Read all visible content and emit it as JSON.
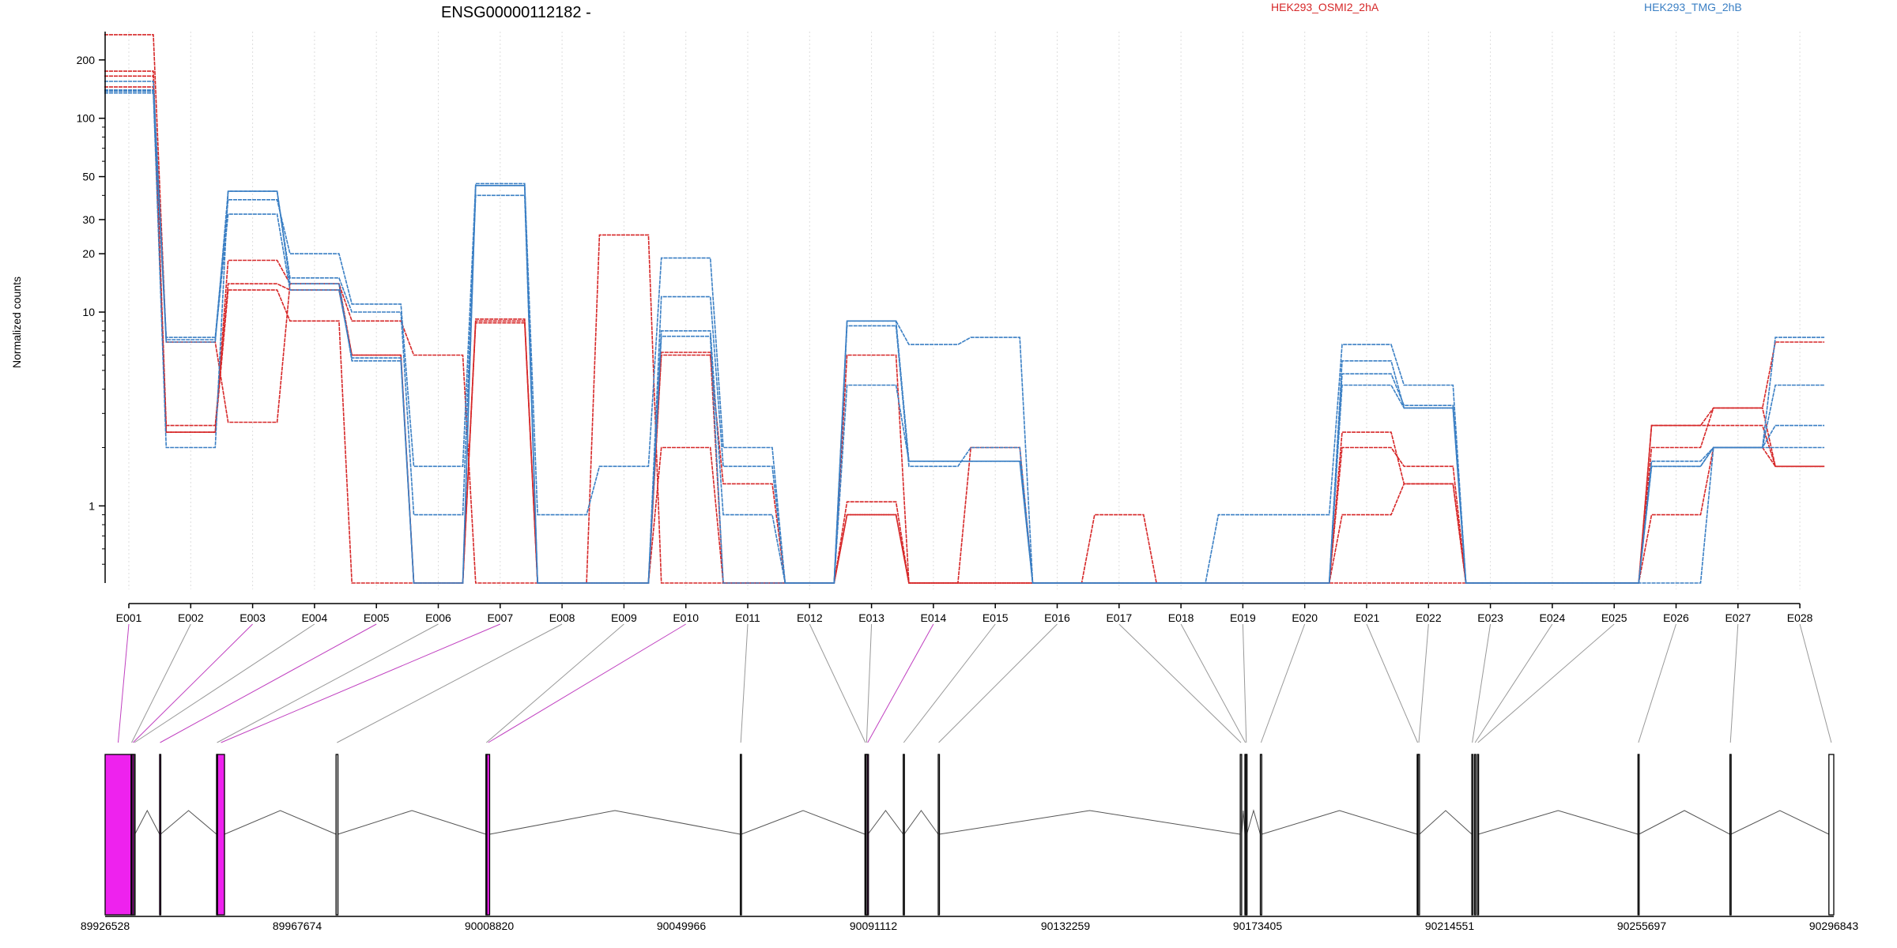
{
  "chart_data": {
    "type": "line",
    "title": "ENSG00000112182 -",
    "ylabel": "Normalized counts",
    "y_scale": "log",
    "ylim": [
      0.4,
      280
    ],
    "y_ticks": [
      {
        "v": 1,
        "label": "1"
      },
      {
        "v": 10,
        "label": "10"
      },
      {
        "v": 20,
        "label": "20"
      },
      {
        "v": 30,
        "label": "30"
      },
      {
        "v": 50,
        "label": "50"
      },
      {
        "v": 100,
        "label": "100"
      },
      {
        "v": 200,
        "label": "200"
      }
    ],
    "categories": [
      "E001",
      "E002",
      "E003",
      "E004",
      "E005",
      "E006",
      "E007",
      "E008",
      "E009",
      "E010",
      "E011",
      "E012",
      "E013",
      "E014",
      "E015",
      "E016",
      "E017",
      "E018",
      "E019",
      "E020",
      "E021",
      "E022",
      "E023",
      "E024",
      "E025",
      "E026",
      "E027",
      "E028"
    ],
    "legend": [
      {
        "label": "HEK293_OSMI2_2hA",
        "color": "#d62728"
      },
      {
        "label": "HEK293_TMG_2hB",
        "color": "#3a7fc4"
      }
    ],
    "floor_value": 0.4,
    "series": [
      {
        "group": "red",
        "color": "#d62728",
        "values": [
          270,
          7,
          2.7,
          14,
          9,
          6,
          0.4,
          0.4,
          25,
          0.4,
          0.4,
          0.4,
          6,
          0.4,
          0.4,
          0.4,
          0.4,
          0.4,
          0.4,
          0.4,
          0.4,
          0.4,
          0.4,
          0.4,
          0.4,
          2.6,
          3.2,
          7
        ]
      },
      {
        "group": "red",
        "color": "#d62728",
        "values": [
          175,
          2.6,
          14,
          13,
          6,
          0.4,
          9,
          0.4,
          0.4,
          6,
          1.3,
          0.4,
          1.05,
          0.4,
          2,
          0.4,
          0.4,
          0.4,
          0.4,
          0.4,
          2,
          1.6,
          0.4,
          0.4,
          0.4,
          2.6,
          2.6,
          1.6
        ]
      },
      {
        "group": "red",
        "color": "#d62728",
        "values": [
          165,
          2.4,
          13,
          9,
          0.4,
          0.4,
          8.8,
          0.4,
          0.4,
          2,
          0.4,
          0.4,
          0.9,
          0.4,
          0.4,
          0.4,
          0.9,
          0.4,
          0.4,
          0.4,
          0.9,
          1.3,
          0.4,
          0.4,
          0.4,
          0.9,
          2,
          1.6
        ]
      },
      {
        "group": "red",
        "color": "#d62728",
        "values": [
          145,
          2.4,
          18.5,
          14,
          6,
          0.4,
          9.2,
          0.4,
          0.4,
          6.2,
          0.4,
          0.4,
          0.9,
          0.4,
          0.4,
          0.4,
          0.4,
          0.4,
          0.4,
          0.4,
          2.4,
          1.3,
          0.4,
          0.4,
          0.4,
          2,
          3.2,
          1.6
        ]
      },
      {
        "group": "blue",
        "color": "#3a7fc4",
        "values": [
          155,
          7.4,
          38,
          20,
          11,
          1.6,
          46,
          0.9,
          1.6,
          19,
          2,
          0.4,
          9,
          6.8,
          7.4,
          0.4,
          0.4,
          0.4,
          0.9,
          0.9,
          6.8,
          4.2,
          0.4,
          0.4,
          0.4,
          1.6,
          2,
          7.4
        ]
      },
      {
        "group": "blue",
        "color": "#3a7fc4",
        "values": [
          140,
          7,
          42,
          15,
          10,
          0.9,
          40,
          0.4,
          0.4,
          12,
          1.6,
          0.4,
          8.5,
          1.6,
          2,
          0.4,
          0.4,
          0.4,
          0.4,
          0.4,
          5.6,
          3.2,
          0.4,
          0.4,
          0.4,
          1.6,
          2,
          4.2
        ]
      },
      {
        "group": "blue",
        "color": "#3a7fc4",
        "values": [
          138,
          7.2,
          32,
          13,
          5.8,
          0.4,
          45,
          0.4,
          0.4,
          8,
          0.9,
          0.4,
          4.2,
          1.7,
          1.7,
          0.4,
          0.4,
          0.4,
          0.4,
          0.4,
          4.8,
          3.3,
          0.4,
          0.4,
          0.4,
          1.7,
          2,
          2.6
        ]
      },
      {
        "group": "blue",
        "color": "#3a7fc4",
        "values": [
          135,
          2,
          42,
          14,
          5.6,
          0.4,
          45,
          0.4,
          0.4,
          7.5,
          0.4,
          0.4,
          9,
          1.7,
          1.7,
          0.4,
          0.4,
          0.4,
          0.4,
          0.4,
          4.2,
          3.2,
          0.4,
          0.4,
          0.4,
          0.4,
          2,
          2
        ]
      }
    ],
    "genomic_axis": {
      "range": [
        89926528,
        90296843
      ],
      "tick_labels": [
        "89926528",
        "89967674",
        "90008820",
        "90049966",
        "90091112",
        "90132259",
        "90173405",
        "90214551",
        "90255697",
        "90296843"
      ]
    },
    "exons": [
      {
        "id": "E001",
        "start": 89926528,
        "end": 89932100,
        "highlight": true
      },
      {
        "id": "E002",
        "start": 89932100,
        "end": 89932300,
        "highlight": false
      },
      {
        "id": "E003",
        "start": 89932300,
        "end": 89932700,
        "highlight": true
      },
      {
        "id": "E004",
        "start": 89932700,
        "end": 89932900,
        "highlight": false
      },
      {
        "id": "E005",
        "start": 89938200,
        "end": 89938400,
        "highlight": true
      },
      {
        "id": "E006",
        "start": 89950400,
        "end": 89950600,
        "highlight": false
      },
      {
        "id": "E007",
        "start": 89950600,
        "end": 89952100,
        "highlight": true
      },
      {
        "id": "E008",
        "start": 89976000,
        "end": 89976400,
        "highlight": false
      },
      {
        "id": "E009",
        "start": 90008100,
        "end": 90008300,
        "highlight": false
      },
      {
        "id": "E010",
        "start": 90008300,
        "end": 90008900,
        "highlight": true
      },
      {
        "id": "E011",
        "start": 90062600,
        "end": 90062800,
        "highlight": false
      },
      {
        "id": "E012",
        "start": 90089300,
        "end": 90089500,
        "highlight": false
      },
      {
        "id": "E013",
        "start": 90089500,
        "end": 90089800,
        "highlight": false
      },
      {
        "id": "E014",
        "start": 90089800,
        "end": 90089950,
        "highlight": true
      },
      {
        "id": "E015",
        "start": 90097500,
        "end": 90097700,
        "highlight": false
      },
      {
        "id": "E016",
        "start": 90105000,
        "end": 90105200,
        "highlight": false
      },
      {
        "id": "E017",
        "start": 90169700,
        "end": 90170000,
        "highlight": false
      },
      {
        "id": "E018",
        "start": 90170700,
        "end": 90170900,
        "highlight": false
      },
      {
        "id": "E019",
        "start": 90170900,
        "end": 90171100,
        "highlight": false
      },
      {
        "id": "E020",
        "start": 90174000,
        "end": 90174300,
        "highlight": false
      },
      {
        "id": "E021",
        "start": 90207600,
        "end": 90207800,
        "highlight": false
      },
      {
        "id": "E022",
        "start": 90207800,
        "end": 90208100,
        "highlight": false
      },
      {
        "id": "E023",
        "start": 90219300,
        "end": 90219500,
        "highlight": false
      },
      {
        "id": "E024",
        "start": 90219900,
        "end": 90220100,
        "highlight": false
      },
      {
        "id": "E025",
        "start": 90220500,
        "end": 90220700,
        "highlight": false
      },
      {
        "id": "E026",
        "start": 90254900,
        "end": 90255100,
        "highlight": false
      },
      {
        "id": "E027",
        "start": 90274600,
        "end": 90274800,
        "highlight": false
      },
      {
        "id": "E028",
        "start": 90295800,
        "end": 90296843,
        "highlight": false
      }
    ],
    "colors": {
      "red": "#d62728",
      "blue": "#3a7fc4",
      "highlight_exon": "#ee22ee",
      "connector_highlight": "#c040c0",
      "connector": "#999999",
      "gridline": "#dddddd"
    }
  }
}
